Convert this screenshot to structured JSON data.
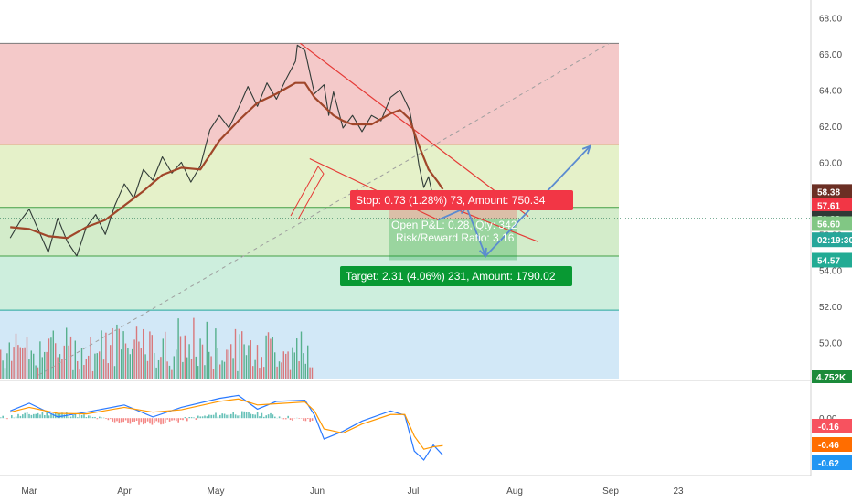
{
  "chart_data": [
    {
      "type": "line",
      "panel": "price",
      "ylim": [
        48.0,
        69.0
      ],
      "x_labels": [
        "Mar",
        "Apr",
        "May",
        "Jun",
        "Jul",
        "Aug",
        "Sep",
        "23"
      ],
      "y_ticks": [
        "50.00",
        "52.00",
        "54.00",
        "56.00",
        "58.00",
        "60.00",
        "62.00",
        "64.00",
        "66.00",
        "68.00"
      ],
      "series": [
        {
          "role": "price",
          "color": "#2f3a36",
          "points": [
            [
              -0.2,
              55.8
            ],
            [
              -0.1,
              56.7
            ],
            [
              0,
              57.4
            ],
            [
              0.1,
              56.2
            ],
            [
              0.2,
              55.0
            ],
            [
              0.3,
              56.9
            ],
            [
              0.4,
              55.6
            ],
            [
              0.5,
              54.8
            ],
            [
              0.6,
              56.4
            ],
            [
              0.7,
              57.1
            ],
            [
              0.8,
              56.0
            ],
            [
              0.9,
              57.6
            ],
            [
              1.0,
              58.8
            ],
            [
              1.1,
              58.0
            ],
            [
              1.2,
              59.6
            ],
            [
              1.3,
              59.0
            ],
            [
              1.4,
              60.3
            ],
            [
              1.5,
              59.4
            ],
            [
              1.6,
              60.0
            ],
            [
              1.7,
              58.9
            ],
            [
              1.8,
              59.8
            ],
            [
              1.9,
              61.8
            ],
            [
              2.0,
              62.6
            ],
            [
              2.1,
              61.9
            ],
            [
              2.2,
              63.0
            ],
            [
              2.3,
              64.2
            ],
            [
              2.4,
              63.1
            ],
            [
              2.5,
              64.4
            ],
            [
              2.6,
              63.5
            ],
            [
              2.7,
              64.6
            ],
            [
              2.8,
              65.6
            ],
            [
              2.82,
              66.5
            ],
            [
              2.9,
              66.2
            ],
            [
              3.0,
              63.8
            ],
            [
              3.1,
              64.3
            ],
            [
              3.15,
              62.6
            ],
            [
              3.2,
              63.9
            ],
            [
              3.3,
              61.9
            ],
            [
              3.4,
              62.6
            ],
            [
              3.5,
              61.7
            ],
            [
              3.6,
              62.6
            ],
            [
              3.7,
              62.3
            ],
            [
              3.8,
              63.6
            ],
            [
              3.9,
              64.0
            ],
            [
              4.0,
              62.9
            ],
            [
              4.05,
              61.5
            ],
            [
              4.1,
              59.8
            ],
            [
              4.15,
              58.6
            ],
            [
              4.2,
              59.2
            ],
            [
              4.25,
              58.0
            ],
            [
              4.3,
              58.4
            ],
            [
              4.35,
              57.3
            ]
          ]
        },
        {
          "role": "moving-average",
          "color": "#a0462a",
          "points": [
            [
              -0.2,
              56.4
            ],
            [
              0,
              56.3
            ],
            [
              0.2,
              55.9
            ],
            [
              0.4,
              55.8
            ],
            [
              0.6,
              56.4
            ],
            [
              0.8,
              56.8
            ],
            [
              1.0,
              57.6
            ],
            [
              1.2,
              58.4
            ],
            [
              1.4,
              59.3
            ],
            [
              1.6,
              59.7
            ],
            [
              1.8,
              59.6
            ],
            [
              2.0,
              61.2
            ],
            [
              2.2,
              62.3
            ],
            [
              2.4,
              63.3
            ],
            [
              2.6,
              63.8
            ],
            [
              2.8,
              64.4
            ],
            [
              2.9,
              64.4
            ],
            [
              3.0,
              63.6
            ],
            [
              3.1,
              63.1
            ],
            [
              3.2,
              62.6
            ],
            [
              3.3,
              62.3
            ],
            [
              3.4,
              62.1
            ],
            [
              3.6,
              62.1
            ],
            [
              3.8,
              62.7
            ],
            [
              3.9,
              62.9
            ],
            [
              4.0,
              62.4
            ],
            [
              4.1,
              60.9
            ],
            [
              4.2,
              59.6
            ],
            [
              4.3,
              58.9
            ],
            [
              4.35,
              58.5
            ]
          ]
        }
      ],
      "horizontal_levels": [
        {
          "value": 66.6,
          "color": "#7a7a7a"
        },
        {
          "value": 61.0,
          "color": "#e53935"
        },
        {
          "value": 57.5,
          "color": "#43a047"
        },
        {
          "value": 54.8,
          "color": "#43a047"
        },
        {
          "value": 51.8,
          "color": "#26a69a"
        }
      ],
      "zones": [
        {
          "from": 61.0,
          "to": 66.6,
          "color": "#f4c9c9"
        },
        {
          "from": 57.5,
          "to": 61.0,
          "color": "#e5f1c9"
        },
        {
          "from": 54.8,
          "to": 57.5,
          "color": "#d3ecca"
        },
        {
          "from": 51.8,
          "to": 54.8,
          "color": "#cdeedd"
        },
        {
          "from": 48.0,
          "to": 51.8,
          "color": "#d2e8f7"
        }
      ],
      "trendlines": [
        {
          "from": [
            2.85,
            66.6
          ],
          "to": [
            5.25,
            57.0
          ],
          "color": "#e53935"
        },
        {
          "from": [
            4.05,
            58.3
          ],
          "to": [
            5.35,
            55.6
          ],
          "color": "#e53935"
        },
        {
          "from": [
            2.95,
            60.2
          ],
          "to": [
            4.3,
            56.8
          ],
          "color": "#e53935"
        }
      ],
      "projection": {
        "color": "#5b8bd0",
        "points": [
          [
            4.3,
            56.8
          ],
          [
            4.6,
            57.5
          ],
          [
            4.8,
            54.8
          ],
          [
            5.9,
            60.9
          ]
        ]
      },
      "dashed_trend": {
        "from": [
          0.1,
          48.2
        ],
        "to": [
          6.1,
          66.6
        ],
        "color": "#9e9e9e"
      },
      "position": {
        "entry": 56.88,
        "stop": 57.61,
        "target": 54.57,
        "open_pnl": "Open P&L: 0.28, Qty: 342",
        "risk_reward": "Risk/Reward Ratio: 3.16",
        "stop_label": "Stop: 0.73 (1.28%) 73, Amount: 750.34",
        "target_label": "Target: 2.31 (4.06%) 231, Amount: 1790.02"
      },
      "price_tags": [
        {
          "text": "58.38",
          "bg": "#6b2f24",
          "y": 58.38
        },
        {
          "text": "57.61",
          "bg": "#f23645",
          "y": 57.61
        },
        {
          "text": "56.88",
          "bg": "#2f3a36",
          "y": 56.88
        },
        {
          "text": "56.60",
          "bg": "#81c784",
          "y": 56.6
        },
        {
          "text": "02:19:30",
          "bg": "#26a69a",
          "y": 55.7
        },
        {
          "text": "54.57",
          "bg": "#22ab94",
          "y": 54.57
        }
      ],
      "volume": {
        "label": "4.752K",
        "label_bg": "#1b8a3a",
        "bars_max_height_fraction": 1.0
      }
    },
    {
      "type": "line",
      "panel": "macd",
      "ylim": [
        -0.9,
        0.6
      ],
      "series": [
        {
          "role": "macd",
          "color": "#2979ff",
          "points": [
            [
              -0.2,
              0.12
            ],
            [
              0,
              0.25
            ],
            [
              0.3,
              0.02
            ],
            [
              0.6,
              0.1
            ],
            [
              1.0,
              0.22
            ],
            [
              1.3,
              0.02
            ],
            [
              1.6,
              0.18
            ],
            [
              2.0,
              0.33
            ],
            [
              2.2,
              0.38
            ],
            [
              2.4,
              0.15
            ],
            [
              2.6,
              0.28
            ],
            [
              2.9,
              0.3
            ],
            [
              3.0,
              0.05
            ],
            [
              3.1,
              -0.35
            ],
            [
              3.3,
              -0.22
            ],
            [
              3.5,
              -0.05
            ],
            [
              3.8,
              0.12
            ],
            [
              3.95,
              0.05
            ],
            [
              4.05,
              -0.55
            ],
            [
              4.15,
              -0.7
            ],
            [
              4.25,
              -0.45
            ],
            [
              4.35,
              -0.62
            ]
          ]
        },
        {
          "role": "signal",
          "color": "#ff9800",
          "points": [
            [
              -0.2,
              0.1
            ],
            [
              0,
              0.18
            ],
            [
              0.3,
              0.08
            ],
            [
              0.6,
              0.07
            ],
            [
              1.0,
              0.18
            ],
            [
              1.3,
              0.1
            ],
            [
              1.6,
              0.14
            ],
            [
              2.0,
              0.28
            ],
            [
              2.2,
              0.32
            ],
            [
              2.4,
              0.22
            ],
            [
              2.6,
              0.24
            ],
            [
              2.9,
              0.27
            ],
            [
              3.0,
              0.12
            ],
            [
              3.1,
              -0.18
            ],
            [
              3.3,
              -0.25
            ],
            [
              3.5,
              -0.1
            ],
            [
              3.8,
              0.06
            ],
            [
              3.95,
              0.06
            ],
            [
              4.05,
              -0.3
            ],
            [
              4.15,
              -0.52
            ],
            [
              4.25,
              -0.48
            ],
            [
              4.35,
              -0.46
            ]
          ]
        }
      ],
      "tags": [
        {
          "text": "-0.16",
          "bg": "#f7525f"
        },
        {
          "text": "-0.46",
          "bg": "#ff6d00"
        },
        {
          "text": "-0.62",
          "bg": "#2196f3"
        }
      ],
      "zero_label": "0.00"
    }
  ]
}
